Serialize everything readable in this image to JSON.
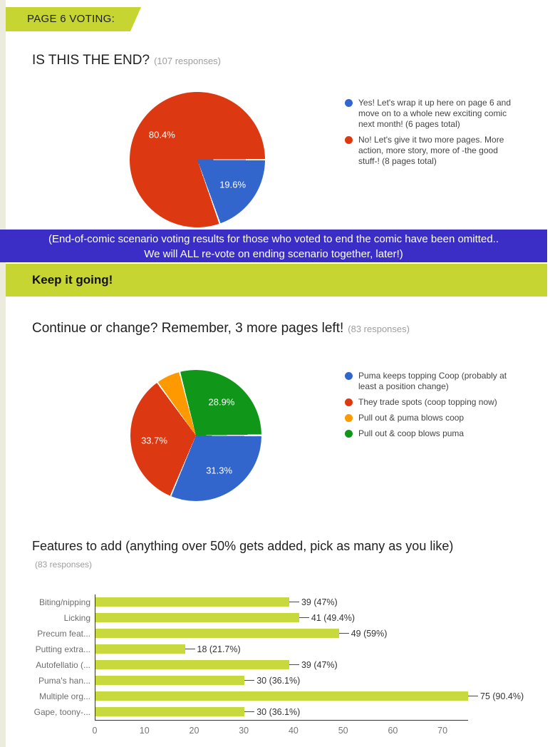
{
  "page": {
    "header_banner": "PAGE 6 VOTING:",
    "notice_banner": {
      "line1": "(End-of-comic scenario voting results for those who voted to end the comic have been omitted..",
      "line2": "We will ALL re-vote on ending scenario together, later!)"
    },
    "section_banner": "Keep it going!"
  },
  "colors": {
    "accent_band": "#c6d531",
    "bar_fill": "#c8d93e",
    "notice_purple": "#3b2ec6",
    "pie_blue": "#3366cc",
    "pie_red": "#dc3912",
    "pie_orange": "#ff9900",
    "pie_green": "#109618"
  },
  "chart_data": [
    {
      "type": "pie",
      "title": "IS THIS THE END?",
      "responses_label": "(107 responses)",
      "legend_position": "right",
      "start_angle_deg": 90,
      "slices": [
        {
          "label": "Yes! Let's wrap it up here on page 6 and move on to a whole new exciting comic next month! (6 pages total)",
          "percent": 19.6,
          "color": "#3366cc",
          "percent_label": "19.6%"
        },
        {
          "label": "No! Let's give it two more pages. More action, more story, more of -the good stuff-! (8 pages total)",
          "percent": 80.4,
          "color": "#dc3912",
          "percent_label": "80.4%"
        }
      ]
    },
    {
      "type": "pie",
      "title": "Continue or change? Remember, 3 more pages left!",
      "responses_label": "(83 responses)",
      "legend_position": "right",
      "start_angle_deg": 90,
      "slices": [
        {
          "label": "Puma keeps topping Coop (probably at least a position change)",
          "percent": 31.3,
          "color": "#3366cc",
          "percent_label": "31.3%"
        },
        {
          "label": "They trade spots (coop topping now)",
          "percent": 33.7,
          "color": "#dc3912",
          "percent_label": "33.7%"
        },
        {
          "label": "Pull out & puma blows coop",
          "percent": 6.0,
          "color": "#ff9900",
          "percent_label": ""
        },
        {
          "label": "Pull out & coop blows puma",
          "percent": 28.9,
          "color": "#109618",
          "percent_label": "28.9%"
        }
      ]
    },
    {
      "type": "bar",
      "title": "Features to add (anything over 50% gets added, pick as many as you like)",
      "responses_label": "(83 responses)",
      "orientation": "horizontal",
      "grid": false,
      "categories": [
        "Biting/nipping",
        "Licking",
        "Precum feat...",
        "Putting extra...",
        "Autofellatio (...",
        "Puma's han...",
        "Multiple org...",
        "Gape, toony-..."
      ],
      "values": [
        39,
        41,
        49,
        18,
        39,
        30,
        75,
        30
      ],
      "value_labels": [
        "39 (47%)",
        "41 (49.4%)",
        "49 (59%)",
        "18 (21.7%)",
        "39 (47%)",
        "30 (36.1%)",
        "75 (90.4%)",
        "30 (36.1%)"
      ],
      "x_ticks": [
        0,
        10,
        20,
        30,
        40,
        50,
        60,
        70
      ],
      "xlim": [
        0,
        75
      ],
      "xlabel": "",
      "ylabel": ""
    }
  ]
}
